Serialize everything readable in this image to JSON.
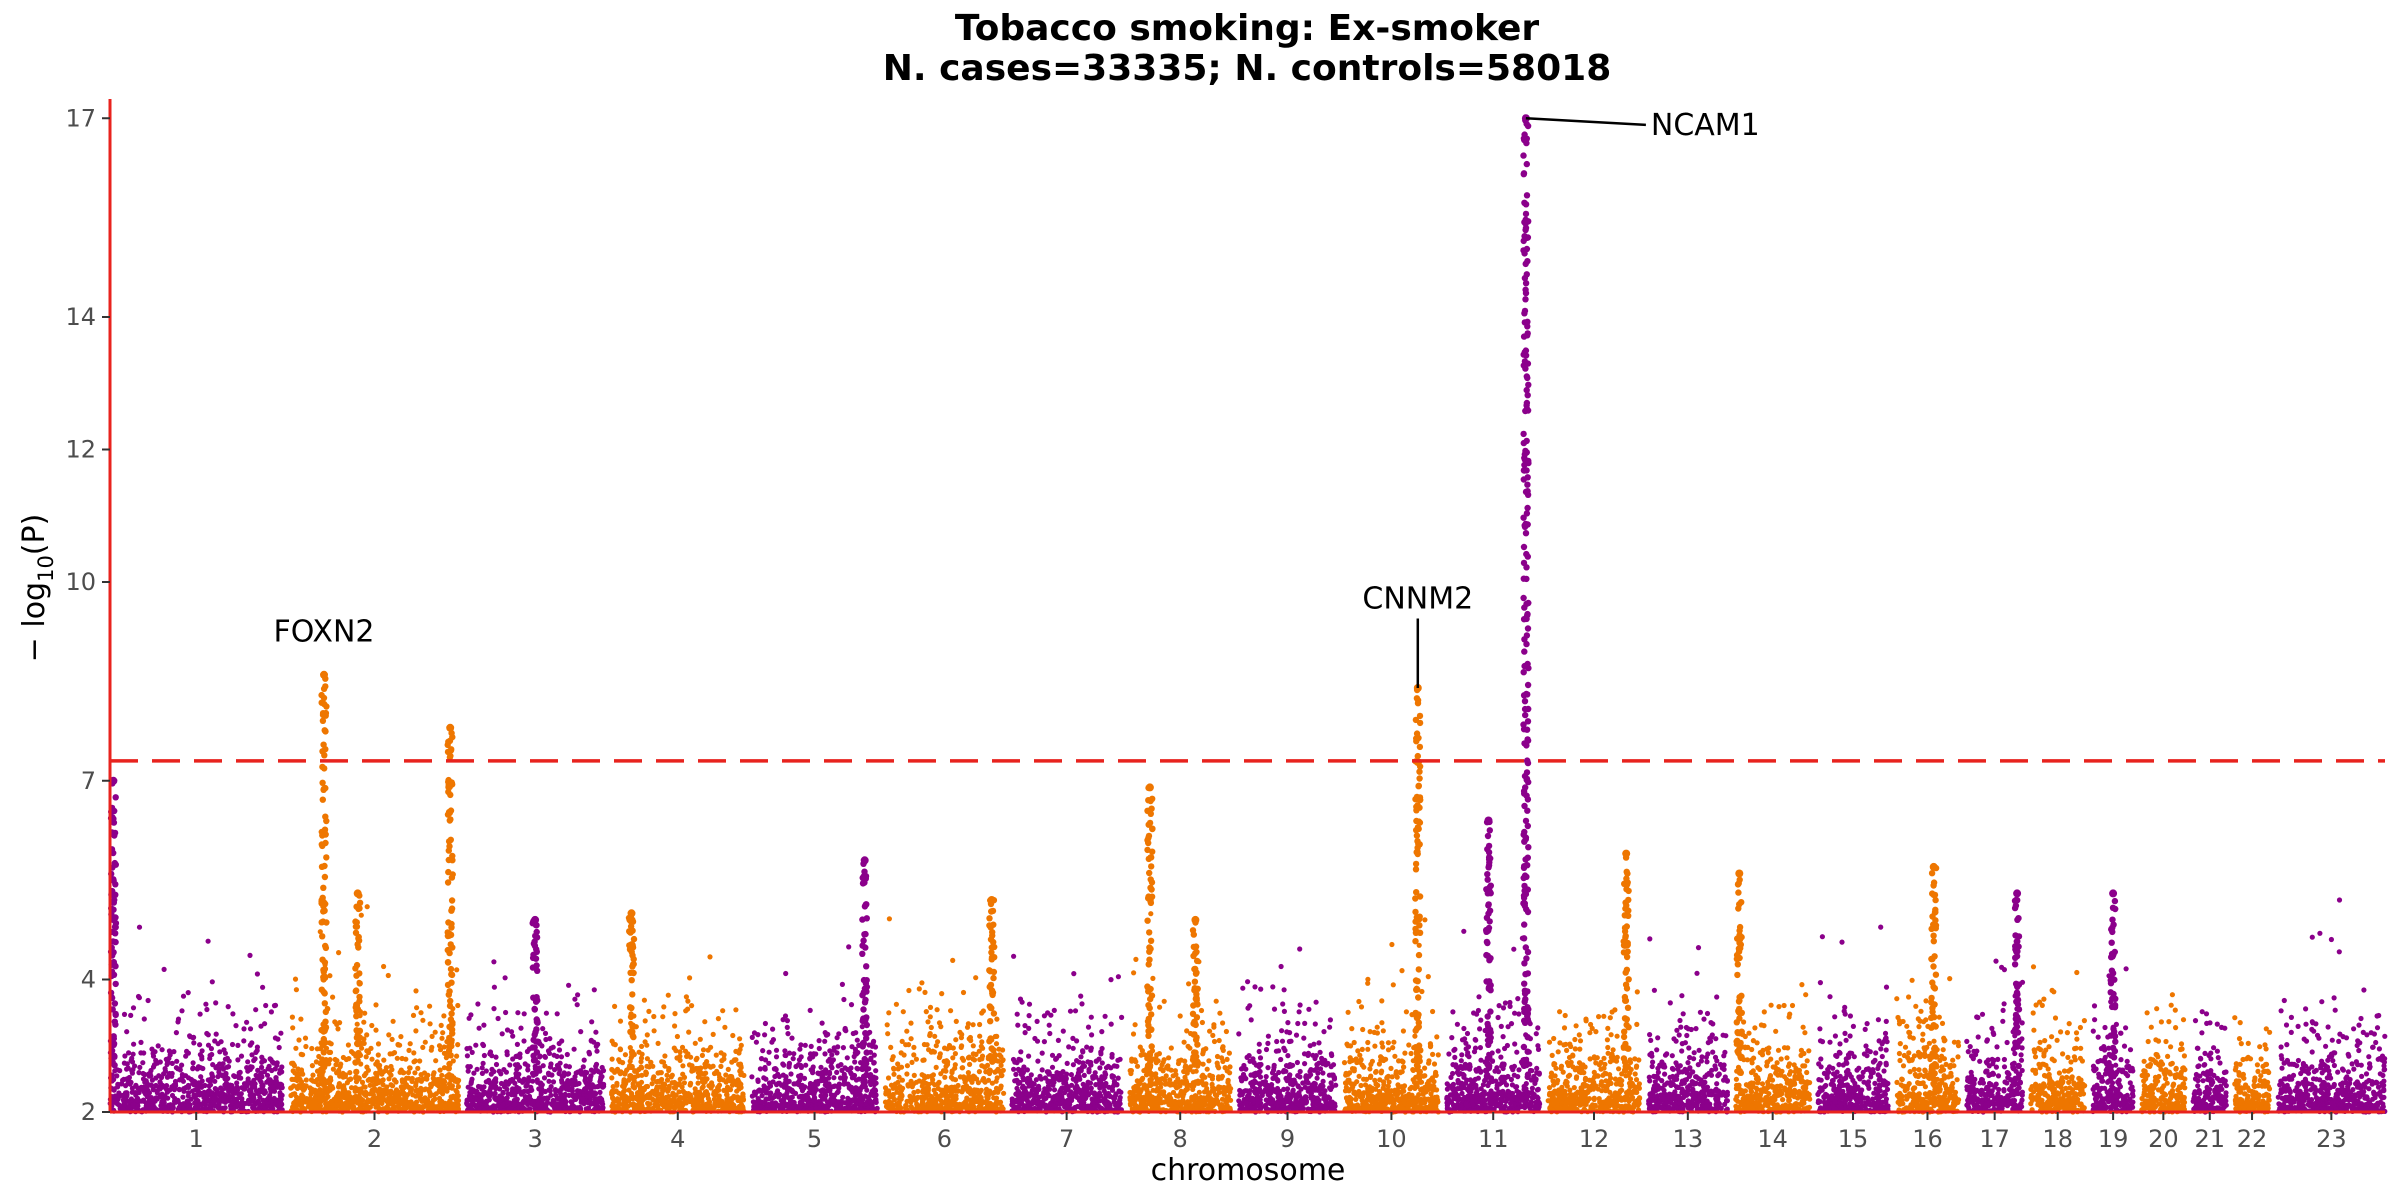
{
  "chart_data": {
    "type": "scatter",
    "title_line1": "Tobacco smoking: Ex-smoker",
    "title_line2": "N. cases=33335; N. controls=58018",
    "xlabel": "chromosome",
    "ylabel": "− log",
    "ylabel_sub": "10",
    "ylabel_tail": "(P)",
    "ylim": [
      2,
      17.2
    ],
    "y_ticks": [
      2,
      4,
      7,
      10,
      12,
      14,
      17
    ],
    "significance_threshold": 7.3,
    "grid": false,
    "colors": {
      "odd": "#8B008B",
      "even": "#EE7600",
      "threshold": "#E8231E",
      "axis": "#E8231E",
      "label_line": "#000000"
    },
    "chromosomes": [
      {
        "label": "1",
        "length": 249
      },
      {
        "label": "2",
        "length": 243
      },
      {
        "label": "3",
        "length": 198
      },
      {
        "label": "4",
        "length": 191
      },
      {
        "label": "5",
        "length": 181
      },
      {
        "label": "6",
        "length": 171
      },
      {
        "label": "7",
        "length": 159
      },
      {
        "label": "8",
        "length": 146
      },
      {
        "label": "9",
        "length": 141
      },
      {
        "label": "10",
        "length": 136
      },
      {
        "label": "11",
        "length": 135
      },
      {
        "label": "12",
        "length": 133
      },
      {
        "label": "13",
        "length": 115
      },
      {
        "label": "14",
        "length": 107
      },
      {
        "label": "15",
        "length": 102
      },
      {
        "label": "16",
        "length": 90
      },
      {
        "label": "17",
        "length": 81
      },
      {
        "label": "18",
        "length": 78
      },
      {
        "label": "19",
        "length": 59
      },
      {
        "label": "20",
        "length": 63
      },
      {
        "label": "21",
        "length": 48
      },
      {
        "label": "22",
        "length": 51
      },
      {
        "label": "23",
        "length": 155
      }
    ],
    "peaks": [
      {
        "chr": "2",
        "pos": 0.2,
        "max": 8.6,
        "gene": "FOXN2",
        "label_y": 9.1
      },
      {
        "chr": "2",
        "pos": 0.4,
        "max": 5.3
      },
      {
        "chr": "2",
        "pos": 0.95,
        "max": 7.8
      },
      {
        "chr": "3",
        "pos": 0.5,
        "max": 4.9
      },
      {
        "chr": "4",
        "pos": 0.15,
        "max": 5.0
      },
      {
        "chr": "5",
        "pos": 0.9,
        "max": 5.8
      },
      {
        "chr": "6",
        "pos": 0.9,
        "max": 5.2
      },
      {
        "chr": "8",
        "pos": 0.2,
        "max": 6.9
      },
      {
        "chr": "8",
        "pos": 0.65,
        "max": 4.9
      },
      {
        "chr": "10",
        "pos": 0.78,
        "max": 8.4,
        "gene": "CNNM2",
        "label_y": 9.6
      },
      {
        "chr": "11",
        "pos": 0.85,
        "max": 17.0,
        "gene": "NCAM1",
        "label_y": 16.9
      },
      {
        "chr": "11",
        "pos": 0.45,
        "max": 6.4
      },
      {
        "chr": "12",
        "pos": 0.85,
        "max": 5.9
      },
      {
        "chr": "14",
        "pos": 0.05,
        "max": 5.6
      },
      {
        "chr": "16",
        "pos": 0.6,
        "max": 5.7
      },
      {
        "chr": "17",
        "pos": 0.9,
        "max": 5.3
      },
      {
        "chr": "19",
        "pos": 0.5,
        "max": 5.3
      },
      {
        "chr": "1",
        "pos": 0.02,
        "max": 7.0
      }
    ]
  }
}
